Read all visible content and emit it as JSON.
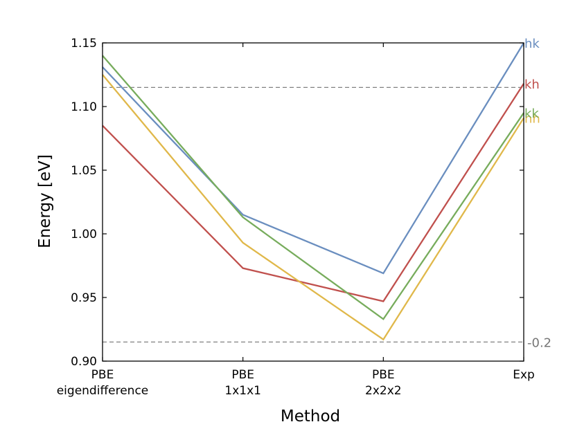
{
  "chart_data": {
    "type": "line",
    "xlabel": "Method",
    "ylabel": "Energy [eV]",
    "categories": [
      [
        "PBE",
        "eigendifference"
      ],
      [
        "PBE",
        "1x1x1"
      ],
      [
        "PBE",
        "2x2x2"
      ],
      [
        "Exp"
      ]
    ],
    "ylim": [
      0.9,
      1.15
    ],
    "yticks": [
      "0.90",
      "0.95",
      "1.00",
      "1.05",
      "1.10",
      "1.15"
    ],
    "grid": false,
    "series": [
      {
        "name": "hk",
        "color": "#6a8ebf",
        "values": [
          1.131,
          1.015,
          0.969,
          1.15
        ]
      },
      {
        "name": "kh",
        "color": "#c0504d",
        "values": [
          1.085,
          0.973,
          0.947,
          1.118
        ]
      },
      {
        "name": "hh",
        "color": "#e0b84a",
        "values": [
          1.125,
          0.993,
          0.917,
          1.091
        ]
      },
      {
        "name": "kk",
        "color": "#77ac5c",
        "values": [
          1.14,
          1.013,
          0.933,
          1.095
        ]
      }
    ],
    "reference_lines": [
      {
        "y": 1.115,
        "label": "",
        "color": "#808080"
      },
      {
        "y": 0.915,
        "label": "-0.2",
        "color": "#808080"
      }
    ]
  }
}
